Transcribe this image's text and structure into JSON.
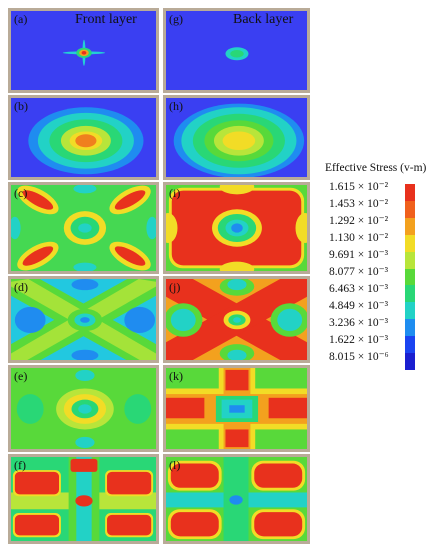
{
  "titles": {
    "front": "Front layer",
    "back": "Back layer"
  },
  "panels": {
    "a": "(a)",
    "b": "(b)",
    "c": "(c)",
    "d": "(d)",
    "e": "(e)",
    "f": "(f)",
    "g": "(g)",
    "h": "(h)",
    "i": "(i)",
    "j": "(j)",
    "k": "(k)",
    "l": "(l)"
  },
  "legend": {
    "title": "Effective Stress (v-m)",
    "values": [
      "1.615 × 10⁻²",
      "1.453 × 10⁻²",
      "1.292 × 10⁻²",
      "1.130 × 10⁻²",
      "9.691 × 10⁻³",
      "8.077 × 10⁻³",
      "6.463 × 10⁻³",
      "4.849 × 10⁻³",
      "3.236 × 10⁻³",
      "1.622 × 10⁻³",
      "8.015 × 10⁻⁶"
    ],
    "colors": [
      "#e8311d",
      "#f0601c",
      "#f3a11e",
      "#f2dc26",
      "#b8e53a",
      "#58d93a",
      "#29d776",
      "#22d2c6",
      "#1e8df0",
      "#1a44f1",
      "#1a1fd0"
    ]
  }
}
